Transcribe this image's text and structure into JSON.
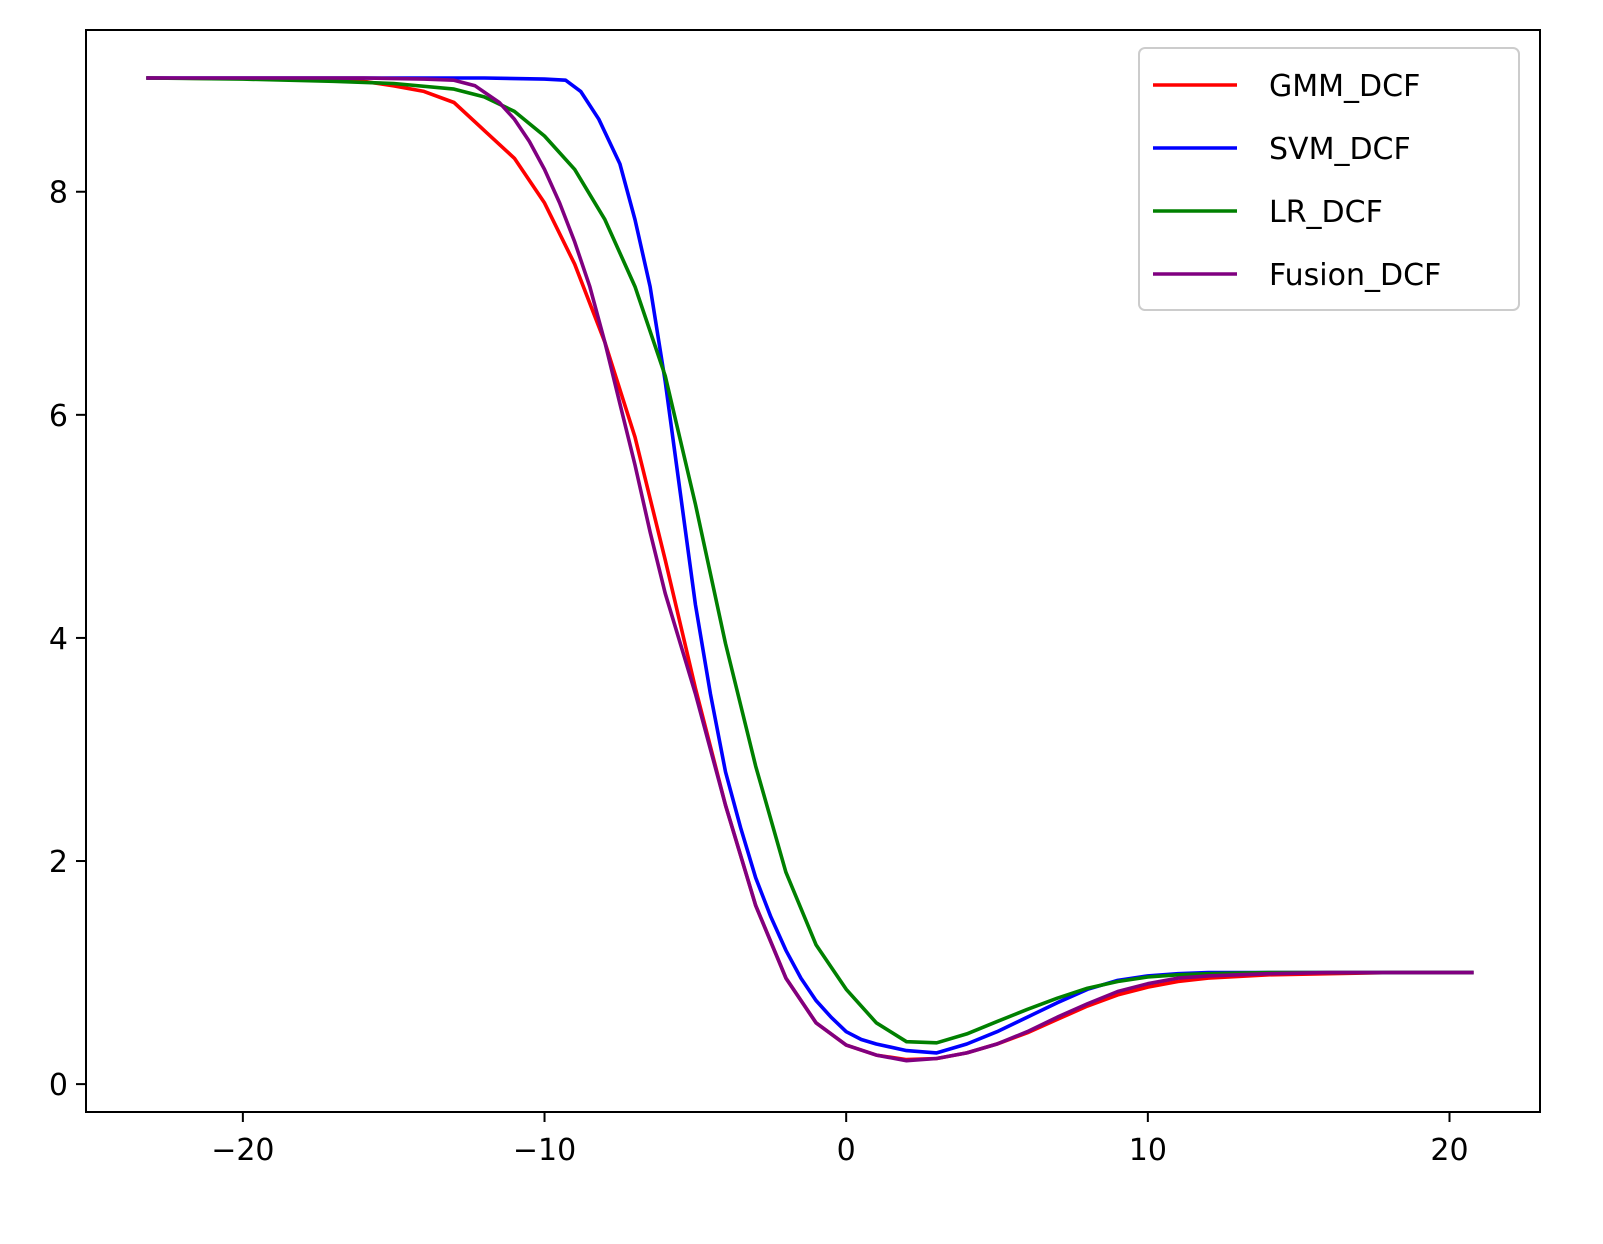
{
  "chart_data": {
    "type": "line",
    "title": "",
    "xlabel": "",
    "ylabel": "",
    "xlim": [
      -25.2,
      23.0
    ],
    "ylim": [
      -0.25,
      9.45
    ],
    "xticks": [
      -20,
      -10,
      0,
      10,
      20
    ],
    "xtick_labels": [
      "−20",
      "−10",
      "0",
      "10",
      "20"
    ],
    "yticks": [
      0,
      2,
      4,
      6,
      8
    ],
    "ytick_labels": [
      "0",
      "2",
      "4",
      "6",
      "8"
    ],
    "grid": false,
    "legend_position": "top-right",
    "series": [
      {
        "name": "GMM_DCF",
        "color": "#ff0000",
        "points": [
          [
            -23.2,
            9.02
          ],
          [
            -18,
            9.01
          ],
          [
            -16,
            8.99
          ],
          [
            -15,
            8.95
          ],
          [
            -14,
            8.9
          ],
          [
            -13,
            8.8
          ],
          [
            -12,
            8.55
          ],
          [
            -11,
            8.3
          ],
          [
            -10,
            7.9
          ],
          [
            -9,
            7.35
          ],
          [
            -8,
            6.65
          ],
          [
            -7,
            5.8
          ],
          [
            -6,
            4.7
          ],
          [
            -5,
            3.55
          ],
          [
            -4,
            2.5
          ],
          [
            -3,
            1.6
          ],
          [
            -2,
            0.95
          ],
          [
            -1,
            0.55
          ],
          [
            0,
            0.35
          ],
          [
            1,
            0.26
          ],
          [
            2,
            0.22
          ],
          [
            3,
            0.23
          ],
          [
            4,
            0.28
          ],
          [
            5,
            0.36
          ],
          [
            6,
            0.46
          ],
          [
            7,
            0.58
          ],
          [
            8,
            0.7
          ],
          [
            9,
            0.8
          ],
          [
            10,
            0.87
          ],
          [
            11,
            0.92
          ],
          [
            12,
            0.95
          ],
          [
            14,
            0.98
          ],
          [
            16,
            0.99
          ],
          [
            18,
            1.0
          ],
          [
            20.8,
            1.0
          ]
        ]
      },
      {
        "name": "SVM_DCF",
        "color": "#0000ff",
        "points": [
          [
            -23.2,
            9.02
          ],
          [
            -15,
            9.02
          ],
          [
            -12,
            9.02
          ],
          [
            -10,
            9.01
          ],
          [
            -9.3,
            9.0
          ],
          [
            -8.8,
            8.9
          ],
          [
            -8.2,
            8.65
          ],
          [
            -7.5,
            8.25
          ],
          [
            -7,
            7.75
          ],
          [
            -6.5,
            7.15
          ],
          [
            -6,
            6.3
          ],
          [
            -5.5,
            5.3
          ],
          [
            -5,
            4.3
          ],
          [
            -4.5,
            3.5
          ],
          [
            -4,
            2.8
          ],
          [
            -3.5,
            2.3
          ],
          [
            -3,
            1.85
          ],
          [
            -2.5,
            1.5
          ],
          [
            -2,
            1.2
          ],
          [
            -1.5,
            0.95
          ],
          [
            -1,
            0.75
          ],
          [
            -0.5,
            0.6
          ],
          [
            0,
            0.47
          ],
          [
            0.5,
            0.4
          ],
          [
            1,
            0.36
          ],
          [
            2,
            0.3
          ],
          [
            3,
            0.28
          ],
          [
            4,
            0.36
          ],
          [
            5,
            0.47
          ],
          [
            6,
            0.6
          ],
          [
            7,
            0.73
          ],
          [
            8,
            0.85
          ],
          [
            9,
            0.93
          ],
          [
            10,
            0.97
          ],
          [
            11,
            0.99
          ],
          [
            12,
            1.0
          ],
          [
            16,
            1.0
          ],
          [
            20.8,
            1.0
          ]
        ]
      },
      {
        "name": "LR_DCF",
        "color": "#008000",
        "points": [
          [
            -23.2,
            9.02
          ],
          [
            -20,
            9.01
          ],
          [
            -17,
            8.99
          ],
          [
            -15,
            8.97
          ],
          [
            -13,
            8.92
          ],
          [
            -12,
            8.85
          ],
          [
            -11,
            8.72
          ],
          [
            -10,
            8.5
          ],
          [
            -9,
            8.2
          ],
          [
            -8,
            7.75
          ],
          [
            -7,
            7.15
          ],
          [
            -6,
            6.35
          ],
          [
            -5,
            5.2
          ],
          [
            -4,
            3.95
          ],
          [
            -3,
            2.85
          ],
          [
            -2,
            1.9
          ],
          [
            -1,
            1.25
          ],
          [
            0,
            0.85
          ],
          [
            1,
            0.55
          ],
          [
            2,
            0.38
          ],
          [
            3,
            0.37
          ],
          [
            4,
            0.45
          ],
          [
            5,
            0.56
          ],
          [
            6,
            0.67
          ],
          [
            7,
            0.77
          ],
          [
            8,
            0.86
          ],
          [
            9,
            0.92
          ],
          [
            10,
            0.96
          ],
          [
            11,
            0.98
          ],
          [
            12,
            0.99
          ],
          [
            14,
            1.0
          ],
          [
            20.8,
            1.0
          ]
        ]
      },
      {
        "name": "Fusion_DCF",
        "color": "#800080",
        "points": [
          [
            -23.2,
            9.02
          ],
          [
            -16,
            9.02
          ],
          [
            -14,
            9.01
          ],
          [
            -13,
            9.0
          ],
          [
            -12.3,
            8.95
          ],
          [
            -11.5,
            8.8
          ],
          [
            -11,
            8.65
          ],
          [
            -10.5,
            8.45
          ],
          [
            -10,
            8.2
          ],
          [
            -9.5,
            7.9
          ],
          [
            -9,
            7.55
          ],
          [
            -8.5,
            7.15
          ],
          [
            -8,
            6.65
          ],
          [
            -7.5,
            6.1
          ],
          [
            -7,
            5.55
          ],
          [
            -6.5,
            4.95
          ],
          [
            -6,
            4.4
          ],
          [
            -5,
            3.5
          ],
          [
            -4,
            2.5
          ],
          [
            -3,
            1.6
          ],
          [
            -2,
            0.95
          ],
          [
            -1,
            0.55
          ],
          [
            0,
            0.35
          ],
          [
            1,
            0.26
          ],
          [
            2,
            0.21
          ],
          [
            3,
            0.23
          ],
          [
            4,
            0.28
          ],
          [
            5,
            0.36
          ],
          [
            6,
            0.47
          ],
          [
            7,
            0.6
          ],
          [
            8,
            0.72
          ],
          [
            9,
            0.83
          ],
          [
            10,
            0.9
          ],
          [
            11,
            0.95
          ],
          [
            12,
            0.97
          ],
          [
            14,
            0.99
          ],
          [
            16,
            1.0
          ],
          [
            20.8,
            1.0
          ]
        ]
      }
    ]
  }
}
